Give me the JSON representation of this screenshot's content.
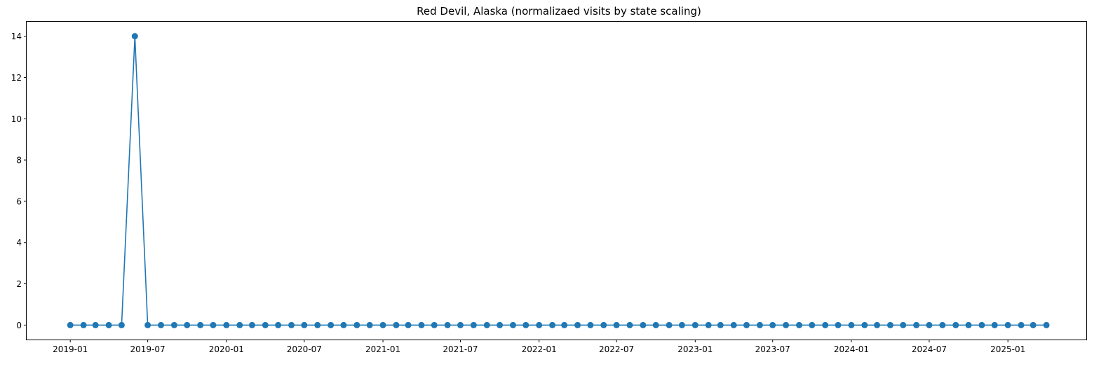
{
  "chart_data": {
    "type": "line",
    "title": "Red Devil, Alaska (normalizaed visits by state scaling)",
    "xlabel": "",
    "ylabel": "",
    "x_type": "date",
    "xlim": [
      "2018-09-21",
      "2025-07-05"
    ],
    "ylim": [
      -0.7,
      14.7
    ],
    "yticks": [
      0,
      2,
      4,
      6,
      8,
      10,
      12,
      14
    ],
    "xticks": [
      {
        "date": "2019-01-01",
        "label": "2019-01"
      },
      {
        "date": "2019-07-01",
        "label": "2019-07"
      },
      {
        "date": "2020-01-01",
        "label": "2020-01"
      },
      {
        "date": "2020-07-01",
        "label": "2020-07"
      },
      {
        "date": "2021-01-01",
        "label": "2021-01"
      },
      {
        "date": "2021-07-01",
        "label": "2021-07"
      },
      {
        "date": "2022-01-01",
        "label": "2022-01"
      },
      {
        "date": "2022-07-01",
        "label": "2022-07"
      },
      {
        "date": "2023-01-01",
        "label": "2023-01"
      },
      {
        "date": "2023-07-01",
        "label": "2023-07"
      },
      {
        "date": "2024-01-01",
        "label": "2024-01"
      },
      {
        "date": "2024-07-01",
        "label": "2024-07"
      },
      {
        "date": "2025-01-01",
        "label": "2025-01"
      }
    ],
    "grid": false,
    "legend": "none",
    "colors": {
      "series": "#1f77b4",
      "axes": "#000000",
      "background": "#ffffff"
    },
    "series": [
      {
        "marker": "circle",
        "x": [
          "2019-01-01",
          "2019-02-01",
          "2019-03-01",
          "2019-04-01",
          "2019-05-01",
          "2019-06-01",
          "2019-07-01",
          "2019-08-01",
          "2019-09-01",
          "2019-10-01",
          "2019-11-01",
          "2019-12-01",
          "2020-01-01",
          "2020-02-01",
          "2020-03-01",
          "2020-04-01",
          "2020-05-01",
          "2020-06-01",
          "2020-07-01",
          "2020-08-01",
          "2020-09-01",
          "2020-10-01",
          "2020-11-01",
          "2020-12-01",
          "2021-01-01",
          "2021-02-01",
          "2021-03-01",
          "2021-04-01",
          "2021-05-01",
          "2021-06-01",
          "2021-07-01",
          "2021-08-01",
          "2021-09-01",
          "2021-10-01",
          "2021-11-01",
          "2021-12-01",
          "2022-01-01",
          "2022-02-01",
          "2022-03-01",
          "2022-04-01",
          "2022-05-01",
          "2022-06-01",
          "2022-07-01",
          "2022-08-01",
          "2022-09-01",
          "2022-10-01",
          "2022-11-01",
          "2022-12-01",
          "2023-01-01",
          "2023-02-01",
          "2023-03-01",
          "2023-04-01",
          "2023-05-01",
          "2023-06-01",
          "2023-07-01",
          "2023-08-01",
          "2023-09-01",
          "2023-10-01",
          "2023-11-01",
          "2023-12-01",
          "2024-01-01",
          "2024-02-01",
          "2024-03-01",
          "2024-04-01",
          "2024-05-01",
          "2024-06-01",
          "2024-07-01",
          "2024-08-01",
          "2024-09-01",
          "2024-10-01",
          "2024-11-01",
          "2024-12-01",
          "2025-01-01",
          "2025-02-01",
          "2025-03-01",
          "2025-04-01"
        ],
        "values": [
          0,
          0,
          0,
          0,
          0,
          14,
          0,
          0,
          0,
          0,
          0,
          0,
          0,
          0,
          0,
          0,
          0,
          0,
          0,
          0,
          0,
          0,
          0,
          0,
          0,
          0,
          0,
          0,
          0,
          0,
          0,
          0,
          0,
          0,
          0,
          0,
          0,
          0,
          0,
          0,
          0,
          0,
          0,
          0,
          0,
          0,
          0,
          0,
          0,
          0,
          0,
          0,
          0,
          0,
          0,
          0,
          0,
          0,
          0,
          0,
          0,
          0,
          0,
          0,
          0,
          0,
          0,
          0,
          0,
          0,
          0,
          0,
          0,
          0,
          0,
          0
        ]
      }
    ]
  }
}
